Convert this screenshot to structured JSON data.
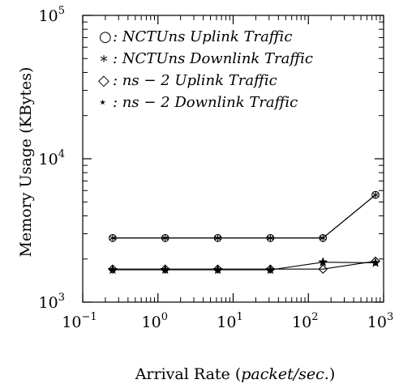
{
  "chart_data": {
    "type": "line",
    "xscale": "log",
    "yscale": "log",
    "xlim": [
      0.1,
      1000
    ],
    "ylim": [
      1000,
      100000
    ],
    "xlabel_prefix": "Arrival Rate (",
    "xlabel_unit": "packet/sec.",
    "xlabel_suffix": ")",
    "ylabel": "Memory Usage (KBytes)",
    "x_ticks": [
      {
        "value": 0.1,
        "base": "10",
        "exp": "−1"
      },
      {
        "value": 1,
        "base": "10",
        "exp": "0"
      },
      {
        "value": 10,
        "base": "10",
        "exp": "1"
      },
      {
        "value": 100,
        "base": "10",
        "exp": "2"
      },
      {
        "value": 1000,
        "base": "10",
        "exp": "3"
      }
    ],
    "y_ticks": [
      {
        "value": 1000,
        "base": "10",
        "exp": "3"
      },
      {
        "value": 10000,
        "base": "10",
        "exp": "4"
      },
      {
        "value": 100000,
        "base": "10",
        "exp": "5"
      }
    ],
    "legend_position": "top-left",
    "grid": false,
    "series": [
      {
        "name": ": NCTUns Uplink Traffic",
        "marker": "circle",
        "marker_glyph": "○",
        "x": [
          0.25,
          1.25,
          6.25,
          31.25,
          156.25,
          781.25
        ],
        "y": [
          2800,
          2800,
          2800,
          2800,
          2800,
          5600
        ]
      },
      {
        "name": ": NCTUns Downlink Traffic",
        "marker": "asterisk",
        "marker_glyph": "∗",
        "x": [
          0.25,
          1.25,
          6.25,
          31.25,
          156.25,
          781.25
        ],
        "y": [
          2800,
          2800,
          2800,
          2800,
          2800,
          5600
        ]
      },
      {
        "name": ": ns − 2 Uplink Traffic",
        "marker": "diamond",
        "marker_glyph": "◇",
        "x": [
          0.25,
          1.25,
          6.25,
          31.25,
          156.25,
          781.25
        ],
        "y": [
          1700,
          1700,
          1700,
          1700,
          1700,
          1930
        ]
      },
      {
        "name": ": ns − 2 Downlink Traffic",
        "marker": "star",
        "marker_glyph": "⋆",
        "x": [
          0.25,
          1.25,
          6.25,
          31.25,
          156.25,
          781.25
        ],
        "y": [
          1680,
          1680,
          1680,
          1680,
          1900,
          1880
        ]
      }
    ]
  }
}
